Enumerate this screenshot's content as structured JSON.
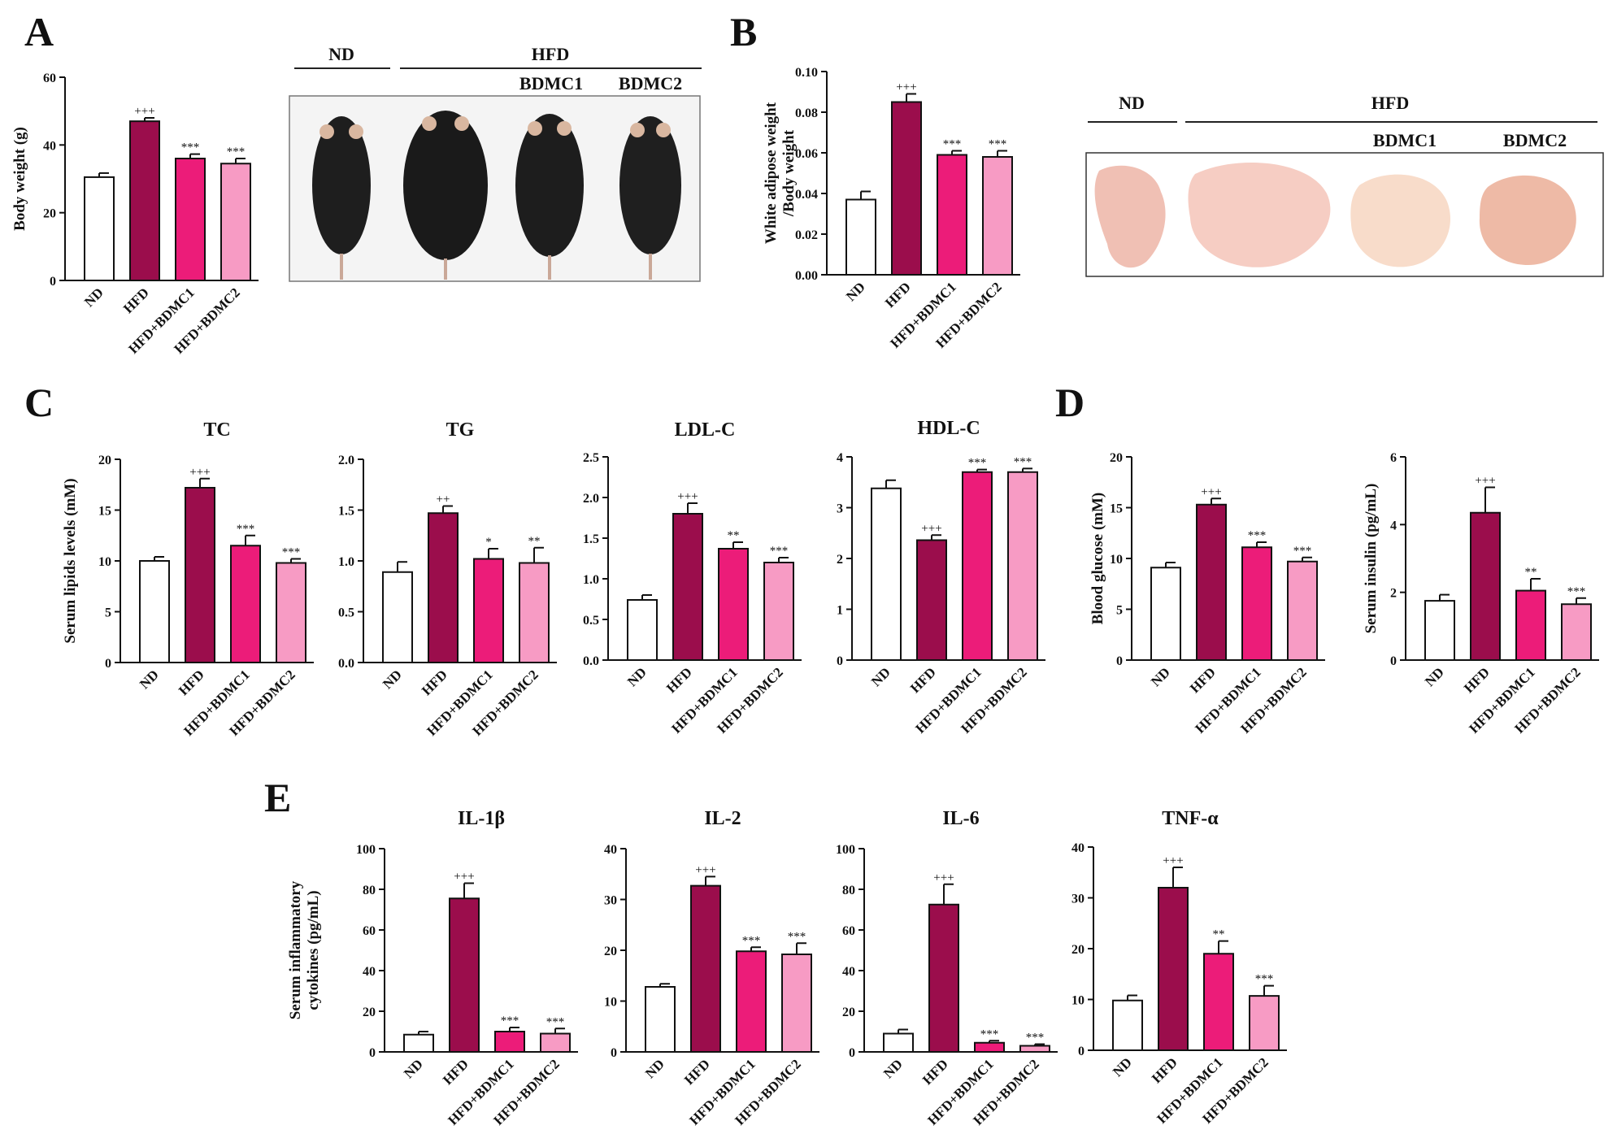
{
  "panels": {
    "A": "A",
    "B": "B",
    "C": "C",
    "D": "D",
    "E": "E"
  },
  "categories": [
    "ND",
    "HFD",
    "HFD+BDMC1",
    "HFD+BDMC2"
  ],
  "colors": {
    "ND": "#ffffff",
    "HFD": "#9b0d4c",
    "HFD+BDMC1": "#ec1c79",
    "HFD+BDMC2": "#f79bc4"
  },
  "photo_panels": {
    "A": {
      "group_nd": "ND",
      "group_hfd": "HFD",
      "sub1": "BDMC1",
      "sub2": "BDMC2",
      "image": "mouse-body-photos"
    },
    "B": {
      "group_nd": "ND",
      "group_hfd": "HFD",
      "sub1": "BDMC1",
      "sub2": "BDMC2",
      "image": "white-adipose-tissue-photos"
    }
  },
  "chart_data": [
    {
      "id": "body-weight",
      "type": "bar",
      "title": "",
      "ylabel": "Body weight (g)",
      "ylim": [
        0,
        60
      ],
      "yticks": [
        "0",
        "20",
        "40",
        "60"
      ],
      "yticks_num": [
        0,
        20,
        40,
        60
      ],
      "categories": [
        "ND",
        "HFD",
        "HFD+BDMC1",
        "HFD+BDMC2"
      ],
      "values": [
        30.5,
        47.0,
        36.0,
        34.5
      ],
      "errors": [
        1.2,
        1.0,
        1.3,
        1.5
      ],
      "significance": [
        "",
        "+++",
        "***",
        "***"
      ]
    },
    {
      "id": "white-adipose",
      "type": "bar",
      "title": "",
      "ylabel": [
        "White adipose weight",
        "/Body weight"
      ],
      "ylim": [
        0,
        0.1
      ],
      "yticks": [
        "0.00",
        "0.02",
        "0.04",
        "0.06",
        "0.08",
        "0.10"
      ],
      "yticks_num": [
        0,
        0.02,
        0.04,
        0.06,
        0.08,
        0.1
      ],
      "categories": [
        "ND",
        "HFD",
        "HFD+BDMC1",
        "HFD+BDMC2"
      ],
      "values": [
        0.037,
        0.085,
        0.059,
        0.058
      ],
      "errors": [
        0.004,
        0.004,
        0.002,
        0.003
      ],
      "significance": [
        "",
        "+++",
        "***",
        "***"
      ]
    },
    {
      "id": "tc",
      "type": "bar",
      "title": "TC",
      "ylabel": "Serum lipids levels (mM)",
      "ylim": [
        0,
        20
      ],
      "yticks": [
        "0",
        "5",
        "10",
        "15",
        "20"
      ],
      "yticks_num": [
        0,
        5,
        10,
        15,
        20
      ],
      "categories": [
        "ND",
        "HFD",
        "HFD+BDMC1",
        "HFD+BDMC2"
      ],
      "values": [
        10.0,
        17.2,
        11.5,
        9.8
      ],
      "errors": [
        0.4,
        0.9,
        1.0,
        0.4
      ],
      "significance": [
        "",
        "+++",
        "***",
        "***"
      ]
    },
    {
      "id": "tg",
      "type": "bar",
      "title": "TG",
      "ylabel": "",
      "ylim": [
        0,
        2.0
      ],
      "yticks": [
        "0.0",
        "0.5",
        "1.0",
        "1.5",
        "2.0"
      ],
      "yticks_num": [
        0,
        0.5,
        1.0,
        1.5,
        2.0
      ],
      "categories": [
        "ND",
        "HFD",
        "HFD+BDMC1",
        "HFD+BDMC2"
      ],
      "values": [
        0.89,
        1.47,
        1.02,
        0.98
      ],
      "errors": [
        0.1,
        0.07,
        0.1,
        0.15
      ],
      "significance": [
        "",
        "++",
        "*",
        "**"
      ]
    },
    {
      "id": "ldl-c",
      "type": "bar",
      "title": "LDL-C",
      "ylabel": "",
      "ylim": [
        0,
        2.5
      ],
      "yticks": [
        "0.0",
        "0.5",
        "1.0",
        "1.5",
        "2.0",
        "2.5"
      ],
      "yticks_num": [
        0,
        0.5,
        1.0,
        1.5,
        2.0,
        2.5
      ],
      "categories": [
        "ND",
        "HFD",
        "HFD+BDMC1",
        "HFD+BDMC2"
      ],
      "values": [
        0.74,
        1.8,
        1.37,
        1.2
      ],
      "errors": [
        0.06,
        0.13,
        0.08,
        0.06
      ],
      "significance": [
        "",
        "+++",
        "**",
        "***"
      ]
    },
    {
      "id": "hdl-c",
      "type": "bar",
      "title": "HDL-C",
      "ylabel": "",
      "ylim": [
        0,
        4
      ],
      "yticks": [
        "0",
        "1",
        "2",
        "3",
        "4"
      ],
      "yticks_num": [
        0,
        1,
        2,
        3,
        4
      ],
      "categories": [
        "ND",
        "HFD",
        "HFD+BDMC1",
        "HFD+BDMC2"
      ],
      "values": [
        3.38,
        2.36,
        3.7,
        3.7
      ],
      "errors": [
        0.16,
        0.1,
        0.05,
        0.07
      ],
      "significance": [
        "",
        "+++",
        "***",
        "***"
      ]
    },
    {
      "id": "blood-glucose",
      "type": "bar",
      "title": "",
      "ylabel": "Blood glucose (mM)",
      "ylim": [
        0,
        20
      ],
      "yticks": [
        "0",
        "5",
        "10",
        "15",
        "20"
      ],
      "yticks_num": [
        0,
        5,
        10,
        15,
        20
      ],
      "categories": [
        "ND",
        "HFD",
        "HFD+BDMC1",
        "HFD+BDMC2"
      ],
      "values": [
        9.1,
        15.3,
        11.1,
        9.7
      ],
      "errors": [
        0.5,
        0.6,
        0.5,
        0.4
      ],
      "significance": [
        "",
        "+++",
        "***",
        "***"
      ]
    },
    {
      "id": "serum-insulin",
      "type": "bar",
      "title": "",
      "ylabel": "Serum insulin (pg/mL)",
      "ylim": [
        0,
        6
      ],
      "yticks": [
        "0",
        "2",
        "4",
        "6"
      ],
      "yticks_num": [
        0,
        2,
        4,
        6
      ],
      "categories": [
        "ND",
        "HFD",
        "HFD+BDMC1",
        "HFD+BDMC2"
      ],
      "values": [
        1.75,
        4.35,
        2.05,
        1.65
      ],
      "errors": [
        0.18,
        0.75,
        0.35,
        0.18
      ],
      "significance": [
        "",
        "+++",
        "**",
        "***"
      ]
    },
    {
      "id": "il-1b",
      "type": "bar",
      "title": "IL-1β",
      "ylabel": [
        "Serum inflammatory",
        "cytokines (pg/mL)"
      ],
      "ylim": [
        0,
        100
      ],
      "yticks": [
        "0",
        "20",
        "40",
        "60",
        "80",
        "100"
      ],
      "yticks_num": [
        0,
        20,
        40,
        60,
        80,
        100
      ],
      "categories": [
        "ND",
        "HFD",
        "HFD+BDMC1",
        "HFD+BDMC2"
      ],
      "values": [
        8.5,
        75.5,
        10.0,
        9.0
      ],
      "errors": [
        1.5,
        7.5,
        2.0,
        2.5
      ],
      "significance": [
        "",
        "+++",
        "***",
        "***"
      ]
    },
    {
      "id": "il-2",
      "type": "bar",
      "title": "IL-2",
      "ylabel": "",
      "ylim": [
        0,
        40
      ],
      "yticks": [
        "0",
        "10",
        "20",
        "30",
        "40"
      ],
      "yticks_num": [
        0,
        10,
        20,
        30,
        40
      ],
      "categories": [
        "ND",
        "HFD",
        "HFD+BDMC1",
        "HFD+BDMC2"
      ],
      "values": [
        12.8,
        32.7,
        19.8,
        19.2
      ],
      "errors": [
        0.6,
        1.8,
        0.8,
        2.2
      ],
      "significance": [
        "",
        "+++",
        "***",
        "***"
      ]
    },
    {
      "id": "il-6",
      "type": "bar",
      "title": "IL-6",
      "ylabel": "",
      "ylim": [
        0,
        100
      ],
      "yticks": [
        "0",
        "20",
        "40",
        "60",
        "80",
        "100"
      ],
      "yticks_num": [
        0,
        20,
        40,
        60,
        80,
        100
      ],
      "categories": [
        "ND",
        "HFD",
        "HFD+BDMC1",
        "HFD+BDMC2"
      ],
      "values": [
        9.0,
        72.5,
        4.5,
        3.0
      ],
      "errors": [
        2.0,
        10.0,
        1.0,
        0.8
      ],
      "significance": [
        "",
        "+++",
        "***",
        "***"
      ]
    },
    {
      "id": "tnf-a",
      "type": "bar",
      "title": "TNF-α",
      "ylabel": "",
      "ylim": [
        0,
        40
      ],
      "yticks": [
        "0",
        "10",
        "20",
        "30",
        "40"
      ],
      "yticks_num": [
        0,
        10,
        20,
        30,
        40
      ],
      "categories": [
        "ND",
        "HFD",
        "HFD+BDMC1",
        "HFD+BDMC2"
      ],
      "values": [
        9.8,
        32.0,
        19.0,
        10.7
      ],
      "errors": [
        1.0,
        4.0,
        2.5,
        2.0
      ],
      "significance": [
        "",
        "+++",
        "**",
        "***"
      ]
    }
  ]
}
